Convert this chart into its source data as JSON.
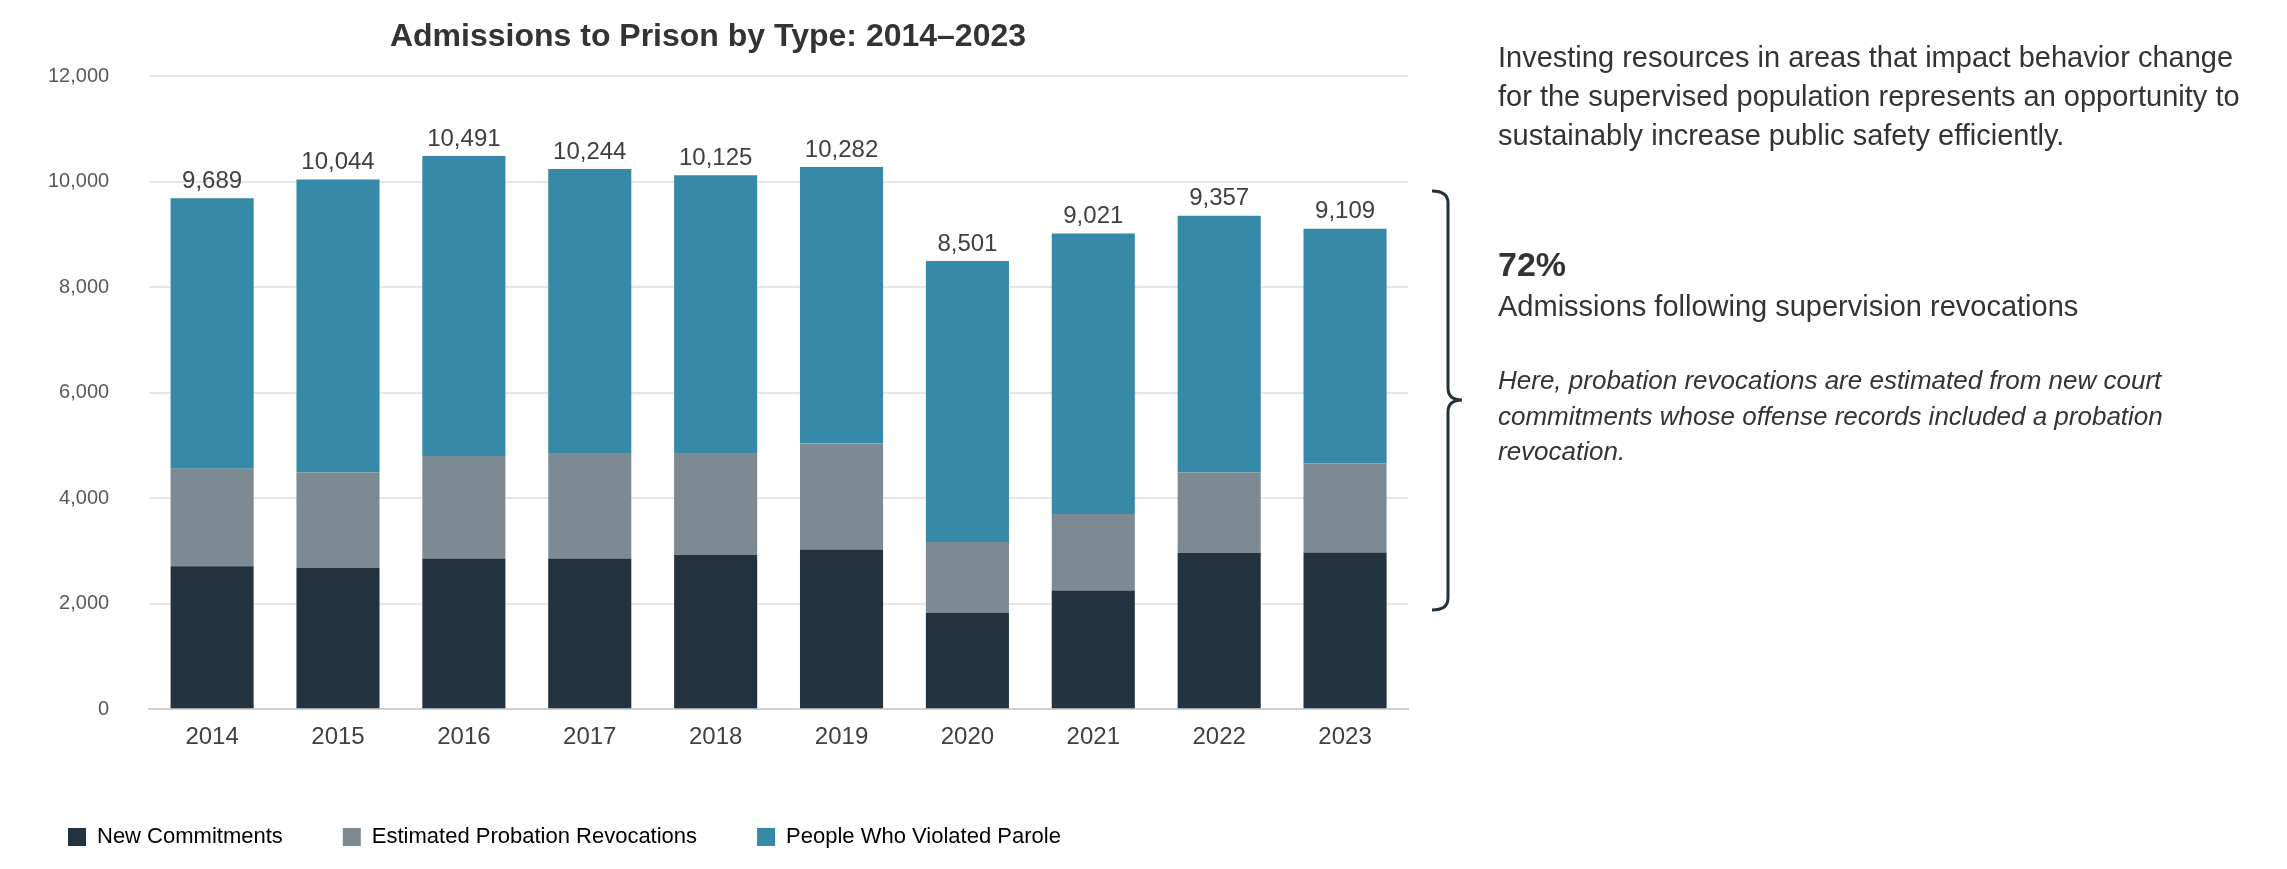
{
  "chart_data": {
    "type": "bar",
    "title": "Admissions to Prison by Type: 2014–2023",
    "categories": [
      "2014",
      "2015",
      "2016",
      "2017",
      "2018",
      "2019",
      "2020",
      "2021",
      "2022",
      "2023"
    ],
    "stacked": true,
    "series": [
      {
        "name": "New Commitments",
        "color": "#22333f",
        "values": [
          2710,
          2680,
          2860,
          2860,
          2930,
          3030,
          1830,
          2250,
          2960,
          2970
        ]
      },
      {
        "name": "Estimated Probation Revocations",
        "color": "#7d8a93",
        "values": [
          1850,
          1810,
          1940,
          2000,
          1930,
          2010,
          1340,
          1450,
          1530,
          1690
        ]
      },
      {
        "name": "People Who Violated Parole",
        "color": "#3789a8",
        "values": [
          5129,
          5554,
          5691,
          5384,
          5265,
          5242,
          5331,
          5321,
          4867,
          4449
        ]
      }
    ],
    "totals": [
      "9,689",
      "10,044",
      "10,491",
      "10,244",
      "10,125",
      "10,282",
      "8,501",
      "9,021",
      "9,357",
      "9,109"
    ],
    "ylim": [
      0,
      12000
    ],
    "yticks": [
      {
        "value": 0,
        "label": "0"
      },
      {
        "value": 2000,
        "label": "2,000"
      },
      {
        "value": 4000,
        "label": "4,000"
      },
      {
        "value": 6000,
        "label": "6,000"
      },
      {
        "value": 8000,
        "label": "8,000"
      },
      {
        "value": 10000,
        "label": "10,000"
      },
      {
        "value": 12000,
        "label": "12,000"
      }
    ],
    "grid": "y",
    "legend": "bottom left",
    "annotations": [
      "Investing resources in areas that impact behavior change for the supervised population represents an opportunity to sustainably increase public safety efficiently.",
      "72%",
      "Admissions following supervision revocations",
      "Here, probation revocations are estimated from new court commitments whose offense records included a probation revocation."
    ]
  }
}
